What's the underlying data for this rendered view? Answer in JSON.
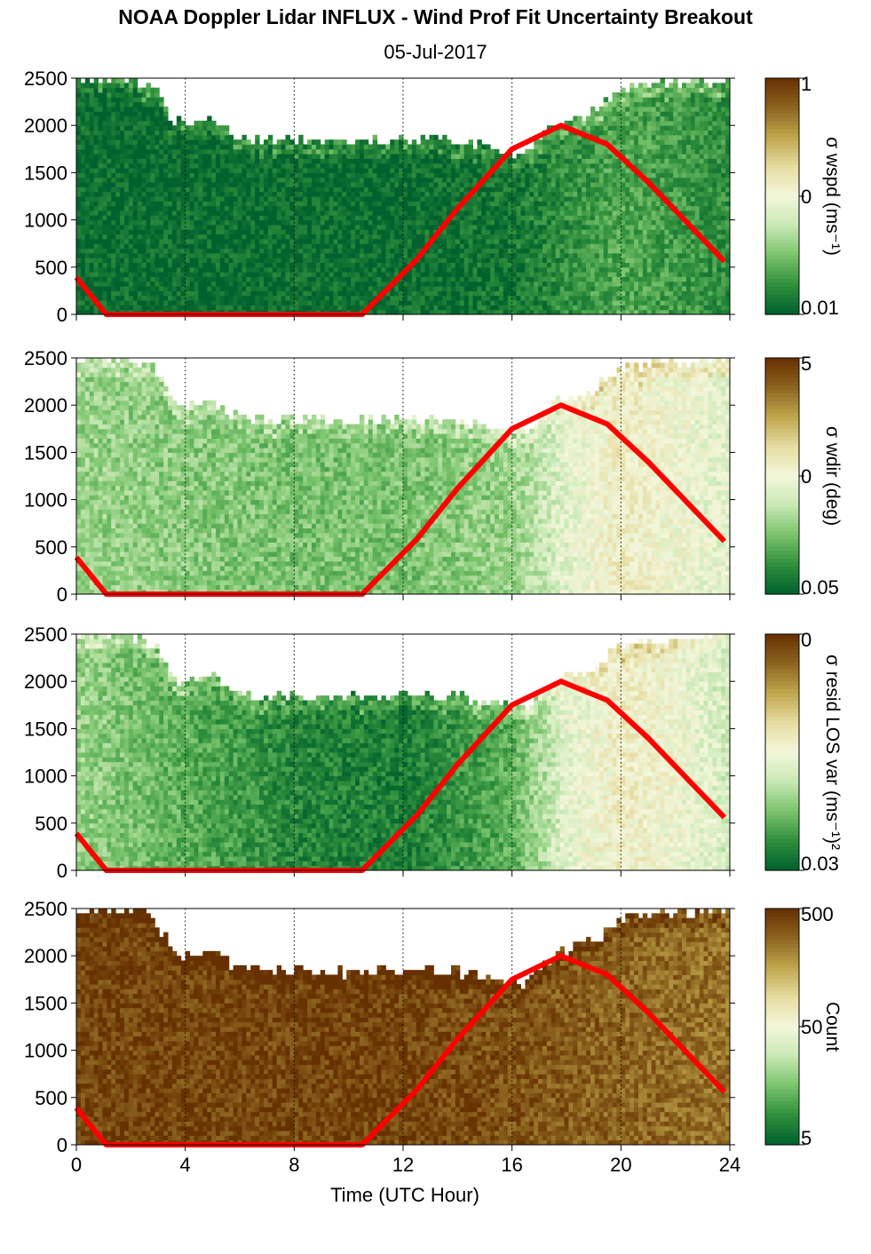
{
  "title": "NOAA Doppler Lidar INFLUX - Wind Prof Fit Uncertainty Breakout",
  "subtitle": "05-Jul-2017",
  "colors": {
    "sun_line": "#ff0000",
    "cmap": [
      "#00612e",
      "#2f8f3c",
      "#7ac46c",
      "#c8e8b4",
      "#f4f7dc",
      "#e6dca0",
      "#bfa64c",
      "#8c6420",
      "#663000"
    ]
  },
  "chart_data": [
    {
      "type": "heatmap",
      "title": "",
      "xlabel": "",
      "ylabel": "",
      "xlim": [
        0,
        24
      ],
      "ylim": [
        0,
        2500
      ],
      "y_ticks": [
        0,
        500,
        1000,
        1500,
        2000,
        2500
      ],
      "x_ticks": [
        0,
        4,
        8,
        12,
        16,
        20,
        24
      ],
      "colorbar": {
        "label": "σ wspd (ms⁻¹)",
        "ticks": [
          "1",
          "0",
          "0.01"
        ],
        "scale": "log"
      },
      "top_height_m": [
        [
          0,
          2480
        ],
        [
          2,
          2500
        ],
        [
          3,
          2350
        ],
        [
          3.5,
          2050
        ],
        [
          4,
          2000
        ],
        [
          5,
          2050
        ],
        [
          6,
          1850
        ],
        [
          8,
          1850
        ],
        [
          10,
          1830
        ],
        [
          12,
          1850
        ],
        [
          14,
          1830
        ],
        [
          15.5,
          1750
        ],
        [
          16.5,
          1700
        ],
        [
          17.5,
          2000
        ],
        [
          19,
          2150
        ],
        [
          20,
          2400
        ],
        [
          22,
          2450
        ],
        [
          24,
          2500
        ]
      ],
      "mean_level": [
        [
          0,
          0.03
        ],
        [
          12,
          0.03
        ],
        [
          16,
          0.06
        ],
        [
          18,
          0.12
        ],
        [
          20,
          0.18
        ],
        [
          22,
          0.15
        ],
        [
          24,
          0.12
        ]
      ]
    },
    {
      "type": "heatmap",
      "title": "",
      "xlabel": "",
      "ylabel": "",
      "xlim": [
        0,
        24
      ],
      "ylim": [
        0,
        2500
      ],
      "y_ticks": [
        0,
        500,
        1000,
        1500,
        2000,
        2500
      ],
      "x_ticks": [
        0,
        4,
        8,
        12,
        16,
        20,
        24
      ],
      "colorbar": {
        "label": "σ wdir (deg)",
        "ticks": [
          "5",
          "0",
          "0.05"
        ],
        "scale": "log"
      },
      "top_height_m": [
        [
          0,
          2480
        ],
        [
          2,
          2500
        ],
        [
          3,
          2350
        ],
        [
          3.5,
          2050
        ],
        [
          4,
          2000
        ],
        [
          5,
          2050
        ],
        [
          6,
          1850
        ],
        [
          8,
          1850
        ],
        [
          10,
          1830
        ],
        [
          12,
          1850
        ],
        [
          14,
          1830
        ],
        [
          15.5,
          1750
        ],
        [
          16.5,
          1700
        ],
        [
          17.5,
          2000
        ],
        [
          19,
          2150
        ],
        [
          20,
          2400
        ],
        [
          22,
          2450
        ],
        [
          24,
          2500
        ]
      ],
      "mean_level": [
        [
          0,
          0.3
        ],
        [
          8,
          0.25
        ],
        [
          12,
          0.25
        ],
        [
          16,
          0.3
        ],
        [
          18,
          0.45
        ],
        [
          20,
          0.55
        ],
        [
          22,
          0.5
        ],
        [
          24,
          0.45
        ]
      ]
    },
    {
      "type": "heatmap",
      "title": "",
      "xlabel": "",
      "ylabel": "",
      "xlim": [
        0,
        24
      ],
      "ylim": [
        0,
        2500
      ],
      "y_ticks": [
        0,
        500,
        1000,
        1500,
        2000,
        2500
      ],
      "x_ticks": [
        0,
        4,
        8,
        12,
        16,
        20,
        24
      ],
      "colorbar": {
        "label": "σ resid LOS var (ms⁻¹)²",
        "ticks": [
          "0",
          "0.03"
        ],
        "scale": "log"
      },
      "top_height_m": [
        [
          0,
          2480
        ],
        [
          2,
          2500
        ],
        [
          3,
          2350
        ],
        [
          3.5,
          2050
        ],
        [
          4,
          2000
        ],
        [
          5,
          2050
        ],
        [
          6,
          1850
        ],
        [
          8,
          1850
        ],
        [
          10,
          1830
        ],
        [
          12,
          1850
        ],
        [
          14,
          1830
        ],
        [
          15.5,
          1750
        ],
        [
          16.5,
          1700
        ],
        [
          17.5,
          2000
        ],
        [
          19,
          2150
        ],
        [
          20,
          2400
        ],
        [
          22,
          2450
        ],
        [
          24,
          2500
        ]
      ],
      "mean_level": [
        [
          0,
          0.3
        ],
        [
          8,
          0.1
        ],
        [
          12,
          0.08
        ],
        [
          16,
          0.2
        ],
        [
          18,
          0.45
        ],
        [
          20,
          0.55
        ],
        [
          22,
          0.5
        ],
        [
          24,
          0.4
        ]
      ]
    },
    {
      "type": "heatmap",
      "title": "",
      "xlabel": "Time (UTC Hour)",
      "ylabel": "",
      "xlim": [
        0,
        24
      ],
      "ylim": [
        0,
        2500
      ],
      "y_ticks": [
        0,
        500,
        1000,
        1500,
        2000,
        2500
      ],
      "x_ticks": [
        0,
        4,
        8,
        12,
        16,
        20,
        24
      ],
      "colorbar": {
        "label": "Count",
        "ticks": [
          "500",
          "50",
          "5"
        ],
        "scale": "log"
      },
      "top_height_m": [
        [
          0,
          2480
        ],
        [
          2,
          2500
        ],
        [
          3,
          2350
        ],
        [
          3.5,
          2050
        ],
        [
          4,
          2000
        ],
        [
          5,
          2050
        ],
        [
          6,
          1850
        ],
        [
          8,
          1850
        ],
        [
          10,
          1830
        ],
        [
          12,
          1850
        ],
        [
          14,
          1830
        ],
        [
          15.5,
          1750
        ],
        [
          16.5,
          1700
        ],
        [
          17.5,
          2000
        ],
        [
          19,
          2150
        ],
        [
          20,
          2400
        ],
        [
          22,
          2450
        ],
        [
          24,
          2500
        ]
      ],
      "mean_level": [
        [
          0,
          0.95
        ],
        [
          12,
          0.95
        ],
        [
          16,
          0.92
        ],
        [
          18,
          0.9
        ],
        [
          20,
          0.88
        ],
        [
          24,
          0.85
        ]
      ]
    }
  ],
  "overlay_line": [
    [
      0,
      390
    ],
    [
      1.1,
      0
    ],
    [
      10.5,
      0
    ],
    [
      12.5,
      580
    ],
    [
      14,
      1120
    ],
    [
      16,
      1750
    ],
    [
      17.8,
      2000
    ],
    [
      19.5,
      1800
    ],
    [
      21,
      1400
    ],
    [
      22.5,
      950
    ],
    [
      23.8,
      560
    ]
  ],
  "x_label": "Time (UTC Hour)"
}
